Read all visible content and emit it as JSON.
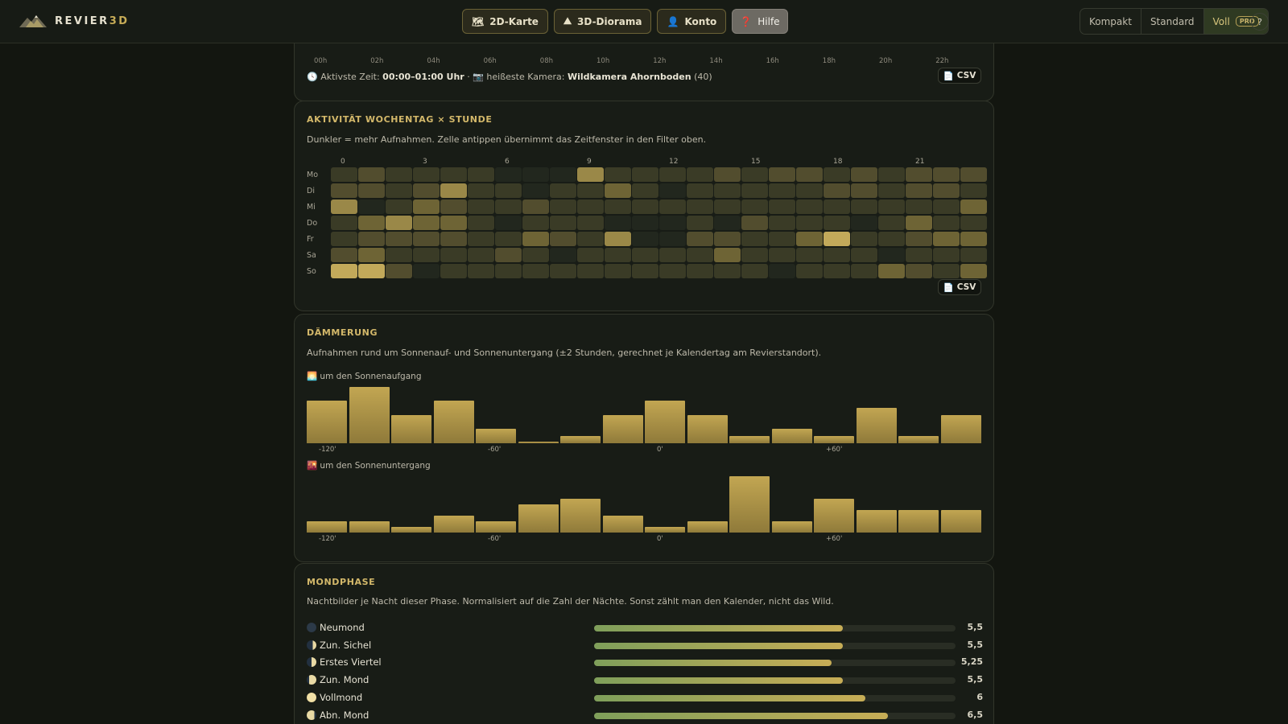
{
  "brand": {
    "name_main": "REVIER",
    "name_accent": "3D"
  },
  "nav": [
    {
      "icon": "🗺",
      "label": "2D-Karte",
      "name": "nav-2d-map-button"
    },
    {
      "icon": "⛰",
      "label": "3D-Diorama",
      "name": "nav-3d-diorama-button"
    },
    {
      "icon": "👤",
      "label": "Konto",
      "name": "nav-account-button"
    },
    {
      "icon": "❓",
      "label": "Hilfe",
      "name": "nav-help-button"
    }
  ],
  "modes": {
    "compact": "Kompakt",
    "standard": "Standard",
    "full": "Voll",
    "pro_badge": "PRO",
    "active": "full",
    "help": "?"
  },
  "hourly": {
    "ticks": [
      "00h",
      "02h",
      "04h",
      "06h",
      "08h",
      "10h",
      "12h",
      "14h",
      "16h",
      "18h",
      "20h",
      "22h"
    ],
    "active_time_label": "Aktivste Zeit:",
    "active_time_value": "00:00–01:00 Uhr",
    "hot_camera_label": "heißeste Kamera:",
    "hot_camera_value": "Wildkamera Ahornboden",
    "hot_camera_count": "(40)",
    "csv": "CSV"
  },
  "heatmap": {
    "title": "AKTIVITÄT WOCHENTAG × STUNDE",
    "description": "Dunkler = mehr Aufnahmen. Zelle antippen übernimmt das Zeitfenster in den Filter oben.",
    "column_ticks": [
      "0",
      "3",
      "6",
      "9",
      "12",
      "15",
      "18",
      "21"
    ],
    "days": [
      "Mo",
      "Di",
      "Mi",
      "Do",
      "Fr",
      "Sa",
      "So"
    ],
    "levels": [
      [
        1,
        2,
        1,
        1,
        1,
        1,
        0,
        0,
        0,
        4,
        1,
        1,
        1,
        1,
        2,
        1,
        2,
        2,
        1,
        2,
        1,
        2,
        2,
        2
      ],
      [
        2,
        2,
        1,
        2,
        4,
        1,
        1,
        0,
        1,
        1,
        3,
        1,
        0,
        1,
        1,
        1,
        1,
        1,
        2,
        2,
        1,
        2,
        2,
        1
      ],
      [
        4,
        0,
        1,
        3,
        2,
        1,
        1,
        2,
        1,
        1,
        1,
        1,
        1,
        1,
        1,
        1,
        1,
        1,
        1,
        1,
        1,
        1,
        1,
        3
      ],
      [
        1,
        3,
        4,
        3,
        3,
        1,
        0,
        1,
        1,
        1,
        0,
        0,
        0,
        1,
        0,
        2,
        1,
        1,
        1,
        0,
        1,
        3,
        1,
        1
      ],
      [
        1,
        2,
        2,
        2,
        2,
        1,
        1,
        3,
        2,
        1,
        4,
        0,
        0,
        2,
        2,
        1,
        1,
        3,
        5,
        1,
        1,
        2,
        3,
        3
      ],
      [
        2,
        3,
        1,
        1,
        1,
        1,
        2,
        1,
        0,
        1,
        1,
        1,
        1,
        1,
        3,
        1,
        1,
        1,
        1,
        1,
        0,
        1,
        1,
        1
      ],
      [
        5,
        5,
        2,
        0,
        1,
        1,
        1,
        1,
        1,
        1,
        1,
        1,
        1,
        1,
        1,
        1,
        0,
        1,
        1,
        1,
        3,
        2,
        1,
        3
      ]
    ],
    "csv": "CSV"
  },
  "twilight": {
    "title": "DÄMMERUNG",
    "description": "Aufnahmen rund um Sonnenauf- und Sonnenuntergang (±2 Stunden, gerechnet je Kalendertag am Revierstandort).",
    "sunrise_label": "um den Sonnenaufgang",
    "sunset_label": "um den Sonnenuntergang",
    "ticks": [
      "-120'",
      "-60'",
      "0'",
      "+60'"
    ],
    "sunrise_values": [
      6,
      8,
      4,
      6,
      2,
      0.2,
      1,
      4,
      6,
      4,
      1,
      2,
      1,
      5,
      1,
      4
    ],
    "sunset_values": [
      2,
      2,
      1,
      3,
      2,
      5,
      6,
      3,
      1,
      2,
      10,
      2,
      6,
      4,
      4,
      4
    ]
  },
  "moon": {
    "title": "MONDPHASE",
    "description": "Nachtbilder je Nacht dieser Phase. Normalisiert auf die Zahl der Nächte. Sonst zählt man den Kalender, nicht das Wild.",
    "max": 8,
    "phases": [
      {
        "label": "Neumond",
        "value": 5.5,
        "display": "5,5"
      },
      {
        "label": "Zun. Sichel",
        "value": 5.5,
        "display": "5,5"
      },
      {
        "label": "Erstes Viertel",
        "value": 5.25,
        "display": "5,25"
      },
      {
        "label": "Zun. Mond",
        "value": 5.5,
        "display": "5,5"
      },
      {
        "label": "Vollmond",
        "value": 6,
        "display": "6"
      },
      {
        "label": "Abn. Mond",
        "value": 6.5,
        "display": "6,5"
      }
    ]
  },
  "colors": {
    "accent": "#c7ac57",
    "heat_levels": [
      "#22271e",
      "#3a3b26",
      "#524d2e",
      "#6e6435",
      "#9a8848",
      "#c2a95a"
    ]
  }
}
